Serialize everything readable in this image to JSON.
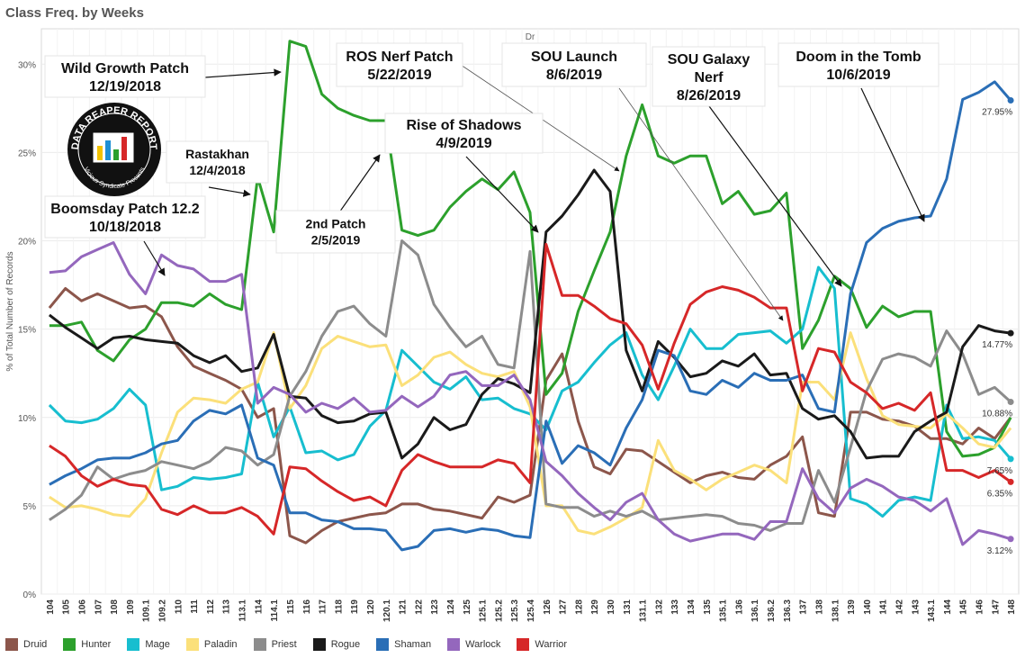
{
  "title": "Class Freq. by Weeks",
  "chart_data": {
    "type": "line",
    "column_header": "Dr",
    "ylabel": "% of Total Number of Records",
    "ylim": [
      0,
      32
    ],
    "yticks": [
      0,
      5,
      10,
      15,
      20,
      25,
      30
    ],
    "ytick_labels": [
      "0%",
      "5%",
      "10%",
      "15%",
      "20%",
      "25%",
      "30%"
    ],
    "grid": true,
    "legend_position": "bottom",
    "x": [
      "104",
      "105",
      "106",
      "107",
      "108",
      "109",
      "109.1",
      "109.2",
      "110",
      "111",
      "112",
      "113",
      "113.1",
      "114",
      "114.1",
      "115",
      "116",
      "117",
      "118",
      "119",
      "120",
      "120.1",
      "121",
      "122",
      "123",
      "124",
      "125",
      "125.1",
      "125.2",
      "125.3",
      "125.4",
      "126",
      "127",
      "128",
      "129",
      "130",
      "131",
      "131.1",
      "132",
      "133",
      "134",
      "135",
      "135.1",
      "136",
      "136.1",
      "136.2",
      "136.3",
      "137",
      "138",
      "138.1",
      "139",
      "140",
      "141",
      "142",
      "143",
      "143.1",
      "144",
      "145",
      "146",
      "147",
      "148"
    ],
    "series": [
      {
        "name": "Druid",
        "color": "#8c564b",
        "values": [
          16.2,
          17.3,
          16.6,
          17.0,
          16.6,
          16.2,
          16.3,
          15.7,
          14.0,
          12.9,
          12.5,
          12.1,
          11.6,
          10.0,
          10.5,
          3.3,
          2.9,
          3.6,
          4.1,
          4.3,
          4.5,
          4.6,
          5.1,
          5.1,
          4.8,
          4.7,
          4.5,
          4.3,
          5.5,
          5.2,
          5.6,
          12.1,
          13.6,
          9.8,
          7.2,
          6.8,
          8.2,
          8.1,
          7.5,
          6.9,
          6.3,
          6.7,
          6.9,
          6.6,
          6.5,
          7.3,
          7.8,
          8.9,
          4.6,
          4.4,
          10.3,
          10.3,
          9.9,
          9.8,
          9.5,
          8.8,
          8.8,
          8.5,
          9.4,
          8.8,
          10.0
        ],
        "label": ""
      },
      {
        "name": "Hunter",
        "color": "#2ca02c",
        "values": [
          15.2,
          15.2,
          15.4,
          13.8,
          13.2,
          14.4,
          15.0,
          16.5,
          16.5,
          16.3,
          17.0,
          16.4,
          16.1,
          23.6,
          20.5,
          31.3,
          31.0,
          28.3,
          27.5,
          27.1,
          26.8,
          26.8,
          20.6,
          20.3,
          20.6,
          21.9,
          22.8,
          23.5,
          22.9,
          23.9,
          21.6,
          11.3,
          12.5,
          16.0,
          18.3,
          20.5,
          24.8,
          27.7,
          24.8,
          24.4,
          24.8,
          24.8,
          22.1,
          22.8,
          21.5,
          21.7,
          22.7,
          13.9,
          15.5,
          18.0,
          17.3,
          15.1,
          16.3,
          15.7,
          16.0,
          16.0,
          9.2,
          7.8,
          7.9,
          8.3,
          10.0
        ],
        "label": ""
      },
      {
        "name": "Mage",
        "color": "#17becf",
        "values": [
          10.7,
          9.8,
          9.7,
          9.9,
          10.5,
          11.6,
          10.7,
          5.9,
          6.1,
          6.6,
          6.5,
          6.6,
          6.8,
          12.0,
          8.9,
          10.6,
          8.0,
          8.1,
          7.6,
          7.9,
          9.5,
          10.4,
          13.8,
          12.9,
          12.0,
          11.6,
          12.3,
          11.0,
          11.1,
          10.5,
          10.2,
          9.3,
          11.5,
          12.0,
          13.1,
          14.1,
          14.8,
          12.4,
          11.0,
          12.9,
          15.0,
          13.9,
          13.9,
          14.7,
          14.8,
          14.9,
          14.2,
          15.0,
          18.5,
          17.3,
          5.4,
          5.1,
          4.4,
          5.3,
          5.5,
          5.3,
          10.7,
          8.8,
          8.9,
          8.7,
          7.65
        ],
        "label": "7.65%"
      },
      {
        "name": "Paladin",
        "color": "#fbe07a",
        "values": [
          5.5,
          4.9,
          5.0,
          4.8,
          4.5,
          4.4,
          5.4,
          8.0,
          10.3,
          11.1,
          11.0,
          10.8,
          11.6,
          12.0,
          14.8,
          10.5,
          11.8,
          13.9,
          14.6,
          14.3,
          14.0,
          14.1,
          11.8,
          12.4,
          13.4,
          13.7,
          13.0,
          12.5,
          12.3,
          12.6,
          10.6,
          5.0,
          5.0,
          3.6,
          3.4,
          3.8,
          4.3,
          4.9,
          8.7,
          7.0,
          6.5,
          5.9,
          6.5,
          6.9,
          7.3,
          7.0,
          6.3,
          12.0,
          12.0,
          11.0,
          14.8,
          12.2,
          10.1,
          9.6,
          9.5,
          9.4,
          10.2,
          9.4,
          8.5,
          8.3,
          9.4
        ],
        "label": ""
      },
      {
        "name": "Priest",
        "color": "#8c8c8c",
        "values": [
          4.2,
          4.8,
          5.6,
          7.2,
          6.5,
          6.8,
          7.0,
          7.5,
          7.3,
          7.1,
          7.5,
          8.3,
          8.1,
          7.3,
          7.9,
          11.2,
          12.6,
          14.6,
          16.0,
          16.3,
          15.3,
          14.6,
          20.0,
          19.2,
          16.4,
          15.1,
          14.0,
          14.6,
          13.0,
          12.8,
          19.4,
          5.1,
          4.9,
          4.9,
          4.4,
          4.7,
          4.4,
          4.7,
          4.2,
          4.3,
          4.4,
          4.5,
          4.4,
          4.0,
          3.9,
          3.6,
          4.0,
          4.0,
          7.0,
          5.2,
          8.3,
          11.5,
          13.3,
          13.6,
          13.4,
          12.9,
          14.9,
          13.6,
          11.3,
          11.7,
          10.88
        ],
        "label": "10.88%"
      },
      {
        "name": "Rogue",
        "color": "#1a1a1a",
        "values": [
          15.8,
          15.1,
          14.5,
          13.9,
          14.5,
          14.6,
          14.4,
          14.3,
          14.2,
          13.5,
          13.1,
          13.5,
          12.6,
          12.8,
          14.7,
          11.2,
          11.1,
          10.1,
          9.7,
          9.8,
          10.2,
          10.3,
          7.7,
          8.5,
          10.0,
          9.3,
          9.6,
          11.3,
          12.2,
          11.9,
          11.4,
          20.5,
          21.4,
          22.6,
          24.0,
          22.8,
          13.8,
          11.5,
          14.3,
          13.4,
          12.3,
          12.5,
          13.2,
          12.9,
          13.6,
          12.4,
          12.5,
          10.5,
          9.9,
          10.1,
          9.2,
          7.7,
          7.8,
          7.8,
          9.2,
          9.8,
          10.3,
          14.0,
          15.2,
          14.9,
          14.77
        ],
        "label": "14.77%"
      },
      {
        "name": "Shaman",
        "color": "#2a6eb6",
        "values": [
          6.2,
          6.7,
          7.1,
          7.6,
          7.7,
          7.7,
          8.0,
          8.5,
          8.7,
          9.8,
          10.4,
          10.2,
          10.7,
          7.7,
          7.3,
          4.6,
          4.6,
          4.2,
          4.1,
          3.7,
          3.7,
          3.6,
          2.5,
          2.7,
          3.6,
          3.7,
          3.5,
          3.7,
          3.6,
          3.3,
          3.2,
          9.8,
          7.4,
          8.4,
          8.0,
          7.3,
          9.4,
          11.0,
          13.8,
          13.5,
          11.5,
          11.3,
          12.1,
          11.7,
          12.5,
          12.1,
          12.1,
          12.4,
          10.5,
          10.3,
          17.0,
          19.9,
          20.7,
          21.1,
          21.3,
          21.4,
          23.5,
          28.0,
          28.4,
          29.0,
          27.95
        ],
        "label": "27.95%"
      },
      {
        "name": "Warlock",
        "color": "#9467bd",
        "values": [
          18.2,
          18.3,
          19.1,
          19.5,
          19.9,
          18.1,
          17.0,
          19.2,
          18.6,
          18.4,
          17.7,
          17.7,
          18.1,
          10.8,
          11.7,
          11.3,
          10.3,
          10.8,
          10.5,
          11.1,
          10.3,
          10.4,
          11.2,
          10.6,
          11.2,
          12.4,
          12.6,
          11.8,
          11.8,
          12.4,
          11.0,
          7.5,
          6.7,
          5.7,
          4.9,
          4.2,
          5.2,
          5.7,
          4.2,
          3.4,
          3.0,
          3.2,
          3.4,
          3.4,
          3.1,
          4.1,
          4.1,
          7.1,
          5.4,
          4.6,
          6.0,
          6.5,
          6.1,
          5.5,
          5.3,
          4.7,
          5.4,
          2.8,
          3.6,
          3.4,
          3.12
        ],
        "label": "3.12%"
      },
      {
        "name": "Warrior",
        "color": "#d62728",
        "values": [
          8.4,
          7.8,
          6.7,
          6.1,
          6.5,
          6.2,
          6.1,
          4.8,
          4.5,
          5.0,
          4.6,
          4.6,
          4.9,
          4.4,
          3.4,
          7.2,
          7.1,
          6.4,
          5.8,
          5.3,
          5.5,
          5.0,
          7.0,
          7.9,
          7.5,
          7.2,
          7.2,
          7.2,
          7.6,
          7.4,
          6.3,
          19.8,
          16.9,
          16.9,
          16.3,
          15.6,
          15.3,
          14.1,
          11.6,
          14.2,
          16.4,
          17.1,
          17.4,
          17.2,
          16.8,
          16.2,
          16.2,
          11.5,
          13.9,
          13.7,
          12.0,
          11.4,
          10.5,
          10.8,
          10.4,
          11.4,
          7.0,
          7.0,
          6.6,
          7.0,
          6.35
        ],
        "label": "6.35%"
      }
    ],
    "annotations": [
      {
        "lines": [
          "Wild Growth Patch",
          "12/19/2018"
        ]
      },
      {
        "lines": [
          "Rastakhan",
          "12/4/2018"
        ]
      },
      {
        "lines": [
          "Boomsday Patch 12.2",
          "10/18/2018"
        ]
      },
      {
        "lines": [
          "2nd Patch",
          "2/5/2019"
        ]
      },
      {
        "lines": [
          "Rise of Shadows",
          "4/9/2019"
        ]
      },
      {
        "lines": [
          "ROS Nerf Patch",
          "5/22/2019"
        ]
      },
      {
        "lines": [
          "SOU Launch",
          "8/6/2019"
        ]
      },
      {
        "lines": [
          "SOU Galaxy",
          "Nerf",
          "8/26/2019"
        ]
      },
      {
        "lines": [
          "Doom in the Tomb",
          "10/6/2019"
        ]
      }
    ],
    "logo": {
      "text_top": "DATA REAPER REPORT",
      "text_bottom": "Vicious Syndicate Presents"
    }
  }
}
